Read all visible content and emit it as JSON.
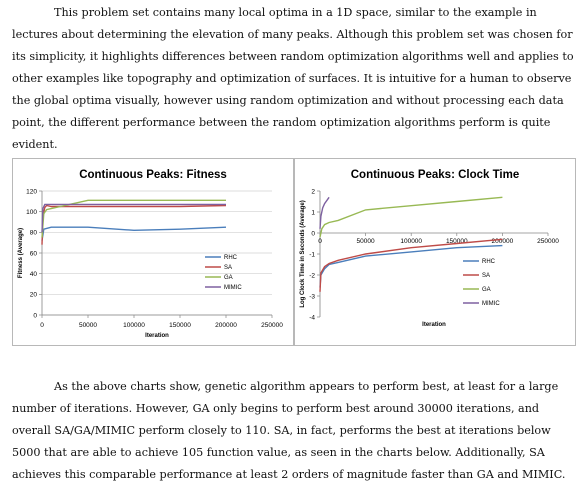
{
  "paragraphs": {
    "intro": "This problem set contains many local optima in a 1D space, similar to the example in lectures about determining the elevation of many peaks. Although this problem set was chosen for its simplicity, it highlights differences between random optimization algorithms well and applies to other examples like topography and optimization of surfaces. It is intuitive for a human to observe the global optima visually,  however using random optimization and without processing each data point, the different performance between the random optimization algorithms perform is quite evident.",
    "analysis": "As the above charts show, genetic algorithm appears to perform best, at least for a large number of iterations. However, GA only begins to perform best around 30000 iterations, and overall SA/GA/MIMIC perform closely to 110. SA, in fact, performs the best at iterations below 5000 that are able to achieve 105 function value, as seen in the charts below. Additionally, SA achieves this comparable performance at least 2 orders of magnitude faster than GA and MIMIC."
  },
  "colors": {
    "RHC": "#4a7ebb",
    "SA": "#be4b48",
    "GA": "#98b954",
    "MIMIC": "#7d60a0",
    "grid": "#d0d0d0",
    "axis": "#868686"
  },
  "chart_data": [
    {
      "type": "line",
      "title": "Continuous Peaks: Fitness",
      "xlabel": "Iteration",
      "ylabel": "Fitness (Average)",
      "xlim": [
        0,
        250000
      ],
      "ylim": [
        0,
        120
      ],
      "xticks": [
        "0",
        "50000",
        "100000",
        "150000",
        "200000",
        "250000"
      ],
      "yticks": [
        "0",
        "20",
        "40",
        "60",
        "80",
        "100",
        "120"
      ],
      "grid": true,
      "legend": "right",
      "series": [
        {
          "name": "RHC",
          "x": [
            0,
            2000,
            10000,
            50000,
            100000,
            150000,
            200000
          ],
          "y": [
            72,
            83,
            85,
            85,
            82,
            83,
            85
          ]
        },
        {
          "name": "SA",
          "x": [
            0,
            1000,
            3000,
            5000,
            10000,
            50000,
            100000,
            150000,
            200000
          ],
          "y": [
            68,
            95,
            104,
            106,
            105,
            105,
            105,
            105,
            106
          ]
        },
        {
          "name": "GA",
          "x": [
            0,
            2000,
            5000,
            10000,
            20000,
            30000,
            50000,
            100000,
            150000,
            200000
          ],
          "y": [
            75,
            98,
            102,
            103,
            105,
            107,
            111,
            111,
            111,
            111
          ]
        },
        {
          "name": "MIMIC",
          "x": [
            0,
            1000,
            3000,
            10000,
            50000,
            100000,
            150000,
            200000
          ],
          "y": [
            80,
            103,
            107,
            107,
            107,
            107,
            107,
            107
          ]
        }
      ]
    },
    {
      "type": "line",
      "title": "Continuous Peaks: Clock Time",
      "xlabel": "Iteration",
      "ylabel": "Log Clock Time in Seconds (Average)",
      "xlim": [
        0,
        250000
      ],
      "ylim": [
        -4,
        2
      ],
      "xticks": [
        "0",
        "50000",
        "100000",
        "150000",
        "200000",
        "250000"
      ],
      "yticks": [
        "-4",
        "-3",
        "-2",
        "-1",
        "0",
        "1",
        "2"
      ],
      "grid": false,
      "legend": "right",
      "series": [
        {
          "name": "RHC",
          "x": [
            0,
            1000,
            5000,
            10000,
            20000,
            50000,
            100000,
            150000,
            200000
          ],
          "y": [
            -2.6,
            -2.0,
            -1.7,
            -1.5,
            -1.4,
            -1.1,
            -0.9,
            -0.7,
            -0.6
          ]
        },
        {
          "name": "SA",
          "x": [
            0,
            1000,
            5000,
            10000,
            20000,
            50000,
            100000,
            150000,
            200000
          ],
          "y": [
            -2.8,
            -1.9,
            -1.6,
            -1.45,
            -1.3,
            -1.0,
            -0.7,
            -0.5,
            -0.3
          ]
        },
        {
          "name": "GA",
          "x": [
            0,
            2000,
            5000,
            10000,
            20000,
            50000,
            100000,
            150000,
            200000
          ],
          "y": [
            -0.2,
            0.2,
            0.4,
            0.5,
            0.6,
            1.1,
            1.3,
            1.5,
            1.7
          ]
        },
        {
          "name": "MIMIC",
          "x": [
            0,
            1000,
            3000,
            5000,
            10000
          ],
          "y": [
            0.2,
            0.8,
            1.2,
            1.4,
            1.7
          ]
        }
      ]
    }
  ]
}
